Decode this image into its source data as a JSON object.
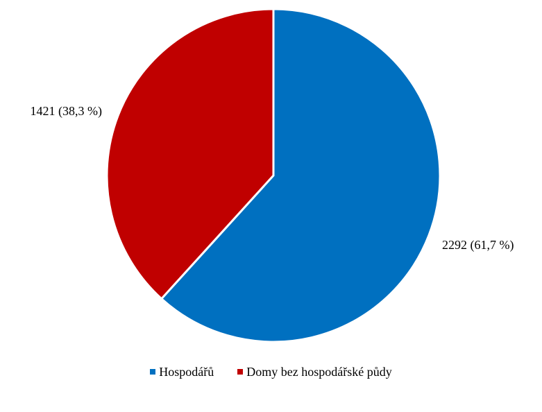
{
  "chart_data": {
    "type": "pie",
    "title": "",
    "series": [
      {
        "name": "Hospodářů",
        "value": 2292,
        "percent": 61.7,
        "label": "2292 (61,7 %)",
        "color": "#0070C0"
      },
      {
        "name": "Domy bez hospodářské půdy",
        "value": 1421,
        "percent": 38.3,
        "label": "1421 (38,3 %)",
        "color": "#C00000"
      }
    ],
    "legend_position": "bottom",
    "start_angle_deg": 0,
    "direction": "clockwise",
    "slice_border_color": "#ffffff"
  }
}
